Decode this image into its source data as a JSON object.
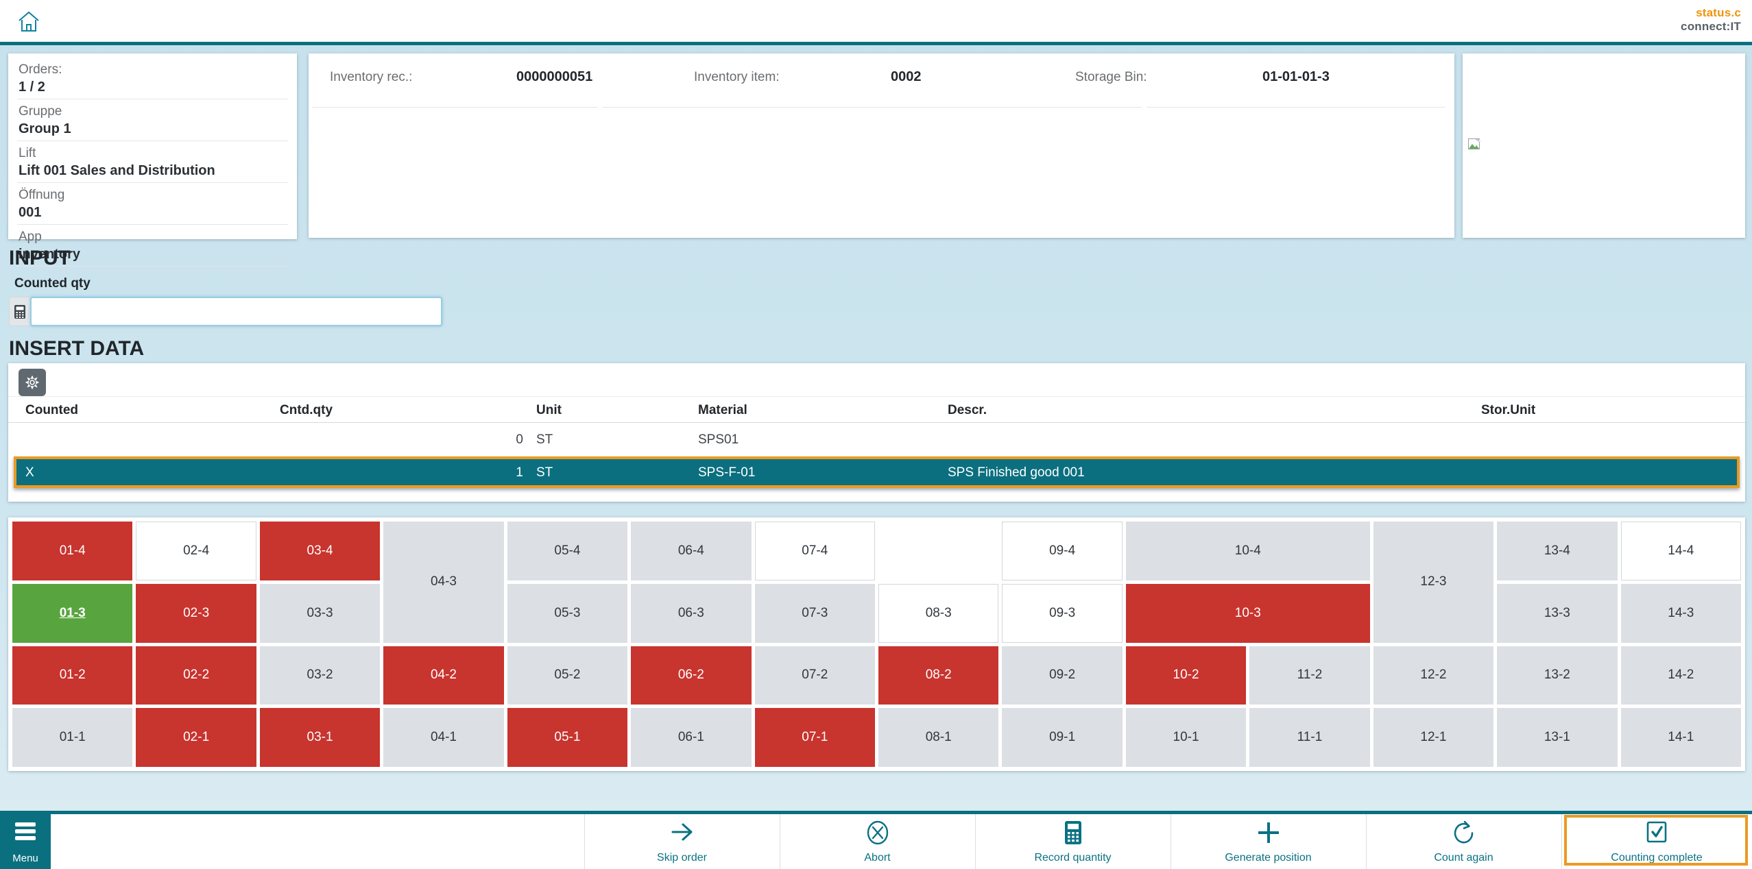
{
  "header": {
    "logo_line1": "status.c",
    "logo_line2": "connect:IT"
  },
  "info_panel": {
    "items": [
      {
        "label": "Orders:",
        "value": "1 / 2"
      },
      {
        "label": "Gruppe",
        "value": "Group 1"
      },
      {
        "label": "Lift",
        "value": "Lift 001 Sales and Distribution"
      },
      {
        "label": "Öffnung",
        "value": "001"
      },
      {
        "label": "App",
        "value": "inventory"
      }
    ]
  },
  "record_panel": {
    "fields": [
      {
        "label": "Inventory rec.:",
        "value": "0000000051"
      },
      {
        "label": "Inventory item:",
        "value": "0002"
      },
      {
        "label": "Storage Bin:",
        "value": "01-01-01-3"
      }
    ]
  },
  "input_section": {
    "title": "INPUT",
    "field_label": "Counted qty",
    "value": "",
    "placeholder": ""
  },
  "insert_data": {
    "title": "INSERT DATA",
    "columns": [
      "Counted",
      "Cntd.qty",
      "Unit",
      "Material",
      "Descr.",
      "Stor.Unit"
    ],
    "rows": [
      {
        "counted": "",
        "qty": "0",
        "unit": "ST",
        "material": "SPS01",
        "descr": "",
        "stor_unit": "",
        "selected": false
      },
      {
        "counted": "X",
        "qty": "1",
        "unit": "ST",
        "material": "SPS-F-01",
        "descr": "SPS Finished good 001",
        "stor_unit": "",
        "selected": true
      }
    ]
  },
  "bin_grid": {
    "current_bin": "01-3",
    "cells": [
      {
        "label": "01-4",
        "state": "red",
        "col": 1,
        "row": 1
      },
      {
        "label": "02-4",
        "state": "white",
        "col": 2,
        "row": 1
      },
      {
        "label": "03-4",
        "state": "red",
        "col": 3,
        "row": 1
      },
      {
        "label": "04-3",
        "state": "gray",
        "col": 4,
        "row": 1,
        "rowspan": 2
      },
      {
        "label": "05-4",
        "state": "gray",
        "col": 5,
        "row": 1
      },
      {
        "label": "06-4",
        "state": "gray",
        "col": 6,
        "row": 1
      },
      {
        "label": "07-4",
        "state": "white",
        "col": 7,
        "row": 1
      },
      {
        "label": "09-4",
        "state": "white",
        "col": 9,
        "row": 1
      },
      {
        "label": "10-4",
        "state": "gray",
        "col": 10,
        "row": 1,
        "colspan": 2
      },
      {
        "label": "12-3",
        "state": "gray",
        "col": 12,
        "row": 1,
        "rowspan": 2
      },
      {
        "label": "13-4",
        "state": "gray",
        "col": 13,
        "row": 1
      },
      {
        "label": "14-4",
        "state": "white",
        "col": 14,
        "row": 1
      },
      {
        "label": "01-3",
        "state": "green",
        "col": 1,
        "row": 2
      },
      {
        "label": "02-3",
        "state": "red",
        "col": 2,
        "row": 2
      },
      {
        "label": "03-3",
        "state": "gray",
        "col": 3,
        "row": 2
      },
      {
        "label": "05-3",
        "state": "gray",
        "col": 5,
        "row": 2
      },
      {
        "label": "06-3",
        "state": "gray",
        "col": 6,
        "row": 2
      },
      {
        "label": "07-3",
        "state": "gray",
        "col": 7,
        "row": 2
      },
      {
        "label": "08-3",
        "state": "white",
        "col": 8,
        "row": 2
      },
      {
        "label": "09-3",
        "state": "white",
        "col": 9,
        "row": 2
      },
      {
        "label": "10-3",
        "state": "red",
        "col": 10,
        "row": 2,
        "colspan": 2
      },
      {
        "label": "13-3",
        "state": "gray",
        "col": 13,
        "row": 2
      },
      {
        "label": "14-3",
        "state": "gray",
        "col": 14,
        "row": 2
      },
      {
        "label": "01-2",
        "state": "red",
        "col": 1,
        "row": 3
      },
      {
        "label": "02-2",
        "state": "red",
        "col": 2,
        "row": 3
      },
      {
        "label": "03-2",
        "state": "gray",
        "col": 3,
        "row": 3
      },
      {
        "label": "04-2",
        "state": "red",
        "col": 4,
        "row": 3
      },
      {
        "label": "05-2",
        "state": "gray",
        "col": 5,
        "row": 3
      },
      {
        "label": "06-2",
        "state": "red",
        "col": 6,
        "row": 3
      },
      {
        "label": "07-2",
        "state": "gray",
        "col": 7,
        "row": 3
      },
      {
        "label": "08-2",
        "state": "red",
        "col": 8,
        "row": 3
      },
      {
        "label": "09-2",
        "state": "gray",
        "col": 9,
        "row": 3
      },
      {
        "label": "10-2",
        "state": "red",
        "col": 10,
        "row": 3
      },
      {
        "label": "11-2",
        "state": "gray",
        "col": 11,
        "row": 3
      },
      {
        "label": "12-2",
        "state": "gray",
        "col": 12,
        "row": 3
      },
      {
        "label": "13-2",
        "state": "gray",
        "col": 13,
        "row": 3
      },
      {
        "label": "14-2",
        "state": "gray",
        "col": 14,
        "row": 3
      },
      {
        "label": "01-1",
        "state": "gray",
        "col": 1,
        "row": 4
      },
      {
        "label": "02-1",
        "state": "red",
        "col": 2,
        "row": 4
      },
      {
        "label": "03-1",
        "state": "red",
        "col": 3,
        "row": 4
      },
      {
        "label": "04-1",
        "state": "gray",
        "col": 4,
        "row": 4
      },
      {
        "label": "05-1",
        "state": "red",
        "col": 5,
        "row": 4
      },
      {
        "label": "06-1",
        "state": "gray",
        "col": 6,
        "row": 4
      },
      {
        "label": "07-1",
        "state": "red",
        "col": 7,
        "row": 4
      },
      {
        "label": "08-1",
        "state": "gray",
        "col": 8,
        "row": 4
      },
      {
        "label": "09-1",
        "state": "gray",
        "col": 9,
        "row": 4
      },
      {
        "label": "10-1",
        "state": "gray",
        "col": 10,
        "row": 4
      },
      {
        "label": "11-1",
        "state": "gray",
        "col": 11,
        "row": 4
      },
      {
        "label": "12-1",
        "state": "gray",
        "col": 12,
        "row": 4
      },
      {
        "label": "13-1",
        "state": "gray",
        "col": 13,
        "row": 4
      },
      {
        "label": "14-1",
        "state": "gray",
        "col": 14,
        "row": 4
      }
    ]
  },
  "footer": {
    "menu_label": "Menu",
    "buttons": [
      {
        "label": "Skip order",
        "icon": "arrow-right-icon"
      },
      {
        "label": "Abort",
        "icon": "cancel-circle-icon"
      },
      {
        "label": "Record quantity",
        "icon": "calculator-icon"
      },
      {
        "label": "Generate position",
        "icon": "plus-icon"
      },
      {
        "label": "Count again",
        "icon": "refresh-icon"
      },
      {
        "label": "Counting complete",
        "icon": "checkbox-checked-icon",
        "highlighted": true
      }
    ]
  },
  "colors": {
    "teal": "#0b6f80",
    "selected_row": "#0b6f7f",
    "highlight_orange": "#ea9a23",
    "bin_red": "#c8342e",
    "bin_green": "#58a53f",
    "bin_gray": "#dce0e4",
    "logo_orange": "#f0940a",
    "logo_gray": "#566067",
    "background": "#cde5ef"
  }
}
